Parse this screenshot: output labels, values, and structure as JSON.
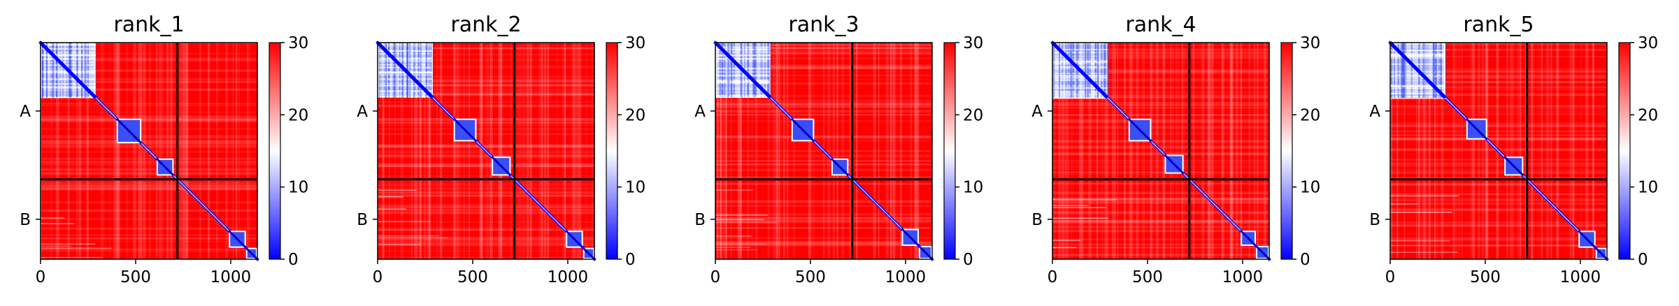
{
  "chart_data": {
    "type": "heatmap",
    "colormap": {
      "low": "#0000ff",
      "mid": "#ffffff",
      "high": "#ff0000"
    },
    "color_range": [
      0,
      30
    ],
    "colorbar_ticks": [
      "0",
      "10",
      "20",
      "30"
    ],
    "x_range": [
      0,
      1140
    ],
    "x_ticks": [
      {
        "value": 0,
        "label": "0"
      },
      {
        "value": 500,
        "label": "500"
      },
      {
        "value": 1000,
        "label": "1000"
      }
    ],
    "chain_boundary": 720,
    "y_labels": [
      {
        "value": 360,
        "label": "A"
      },
      {
        "value": 930,
        "label": "B"
      }
    ],
    "grid": false,
    "legend": "colorbar-right",
    "panels": [
      {
        "title": "rank_1",
        "domains": [
          [
            0,
            290
          ],
          [
            400,
            530
          ],
          [
            610,
            700
          ],
          [
            990,
            1080
          ],
          [
            1080,
            1140
          ]
        ],
        "b_wave": 6
      },
      {
        "title": "rank_2",
        "domains": [
          [
            0,
            290
          ],
          [
            400,
            520
          ],
          [
            600,
            700
          ],
          [
            990,
            1080
          ],
          [
            1080,
            1140
          ]
        ],
        "b_wave": 7
      },
      {
        "title": "rank_3",
        "domains": [
          [
            0,
            290
          ],
          [
            400,
            520
          ],
          [
            610,
            700
          ],
          [
            980,
            1070
          ],
          [
            1070,
            1140
          ]
        ],
        "b_wave": 8
      },
      {
        "title": "rank_4",
        "domains": [
          [
            0,
            290
          ],
          [
            400,
            520
          ],
          [
            590,
            690
          ],
          [
            990,
            1070
          ],
          [
            1070,
            1140
          ]
        ],
        "b_wave": 6
      },
      {
        "title": "rank_5",
        "domains": [
          [
            0,
            290
          ],
          [
            400,
            510
          ],
          [
            600,
            700
          ],
          [
            990,
            1080
          ],
          [
            1080,
            1140
          ]
        ],
        "b_wave": 5
      }
    ]
  }
}
